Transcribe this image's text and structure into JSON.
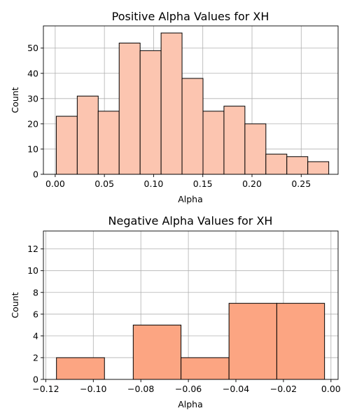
{
  "chart_data": [
    {
      "type": "bar",
      "title": "Positive Alpha Values for XH",
      "xlabel": "Alpha",
      "ylabel": "Count",
      "color": "#fcc5b0",
      "grid": true,
      "xlim": [
        -0.012,
        0.2875
      ],
      "ylim": [
        0,
        58.8
      ],
      "xticks": [
        "0.00",
        "0.05",
        "0.10",
        "0.15",
        "0.20",
        "0.25"
      ],
      "xtick_values": [
        0.0,
        0.05,
        0.1,
        0.15,
        0.2,
        0.25
      ],
      "yticks": [
        "0",
        "10",
        "20",
        "30",
        "40",
        "50"
      ],
      "ytick_values": [
        0,
        10,
        20,
        30,
        40,
        50
      ],
      "bins": [
        {
          "x0": 0.0011,
          "x1": 0.0224,
          "count": 23
        },
        {
          "x0": 0.0224,
          "x1": 0.0437,
          "count": 31
        },
        {
          "x0": 0.0437,
          "x1": 0.065,
          "count": 25
        },
        {
          "x0": 0.065,
          "x1": 0.0863,
          "count": 52
        },
        {
          "x0": 0.0863,
          "x1": 0.1076,
          "count": 49
        },
        {
          "x0": 0.1076,
          "x1": 0.1289,
          "count": 56
        },
        {
          "x0": 0.1289,
          "x1": 0.1502,
          "count": 38
        },
        {
          "x0": 0.1502,
          "x1": 0.1715,
          "count": 25
        },
        {
          "x0": 0.1715,
          "x1": 0.1928,
          "count": 27
        },
        {
          "x0": 0.1928,
          "x1": 0.2141,
          "count": 20
        },
        {
          "x0": 0.2141,
          "x1": 0.2354,
          "count": 8
        },
        {
          "x0": 0.2354,
          "x1": 0.2567,
          "count": 7
        },
        {
          "x0": 0.2567,
          "x1": 0.278,
          "count": 5
        }
      ]
    },
    {
      "type": "bar",
      "title": "Negative Alpha Values for XH",
      "xlabel": "Alpha",
      "ylabel": "Count",
      "color": "#fca582",
      "grid": true,
      "xlim": [
        -0.121,
        0.003
      ],
      "ylim": [
        0,
        13.65
      ],
      "xticks": [
        "−0.12",
        "−0.10",
        "−0.08",
        "−0.06",
        "−0.04",
        "−0.02",
        "0.00"
      ],
      "xtick_values": [
        -0.12,
        -0.1,
        -0.08,
        -0.06,
        -0.04,
        -0.02,
        0.0
      ],
      "yticks": [
        "0",
        "2",
        "4",
        "6",
        "8",
        "10",
        "12"
      ],
      "ytick_values": [
        0,
        2,
        4,
        6,
        8,
        10,
        12
      ],
      "bins": [
        {
          "x0": -0.1155,
          "x1": -0.0953,
          "count": 2
        },
        {
          "x0": -0.0953,
          "x1": -0.0832,
          "count": 0
        },
        {
          "x0": -0.0832,
          "x1": -0.0631,
          "count": 5
        },
        {
          "x0": -0.0631,
          "x1": -0.0429,
          "count": 2
        },
        {
          "x0": -0.0429,
          "x1": -0.0228,
          "count": 7
        },
        {
          "x0": -0.0228,
          "x1": -0.0027,
          "count": 7
        },
        {
          "x0": -0.0027,
          "x1": -0.0007,
          "count": 0
        }
      ]
    }
  ]
}
